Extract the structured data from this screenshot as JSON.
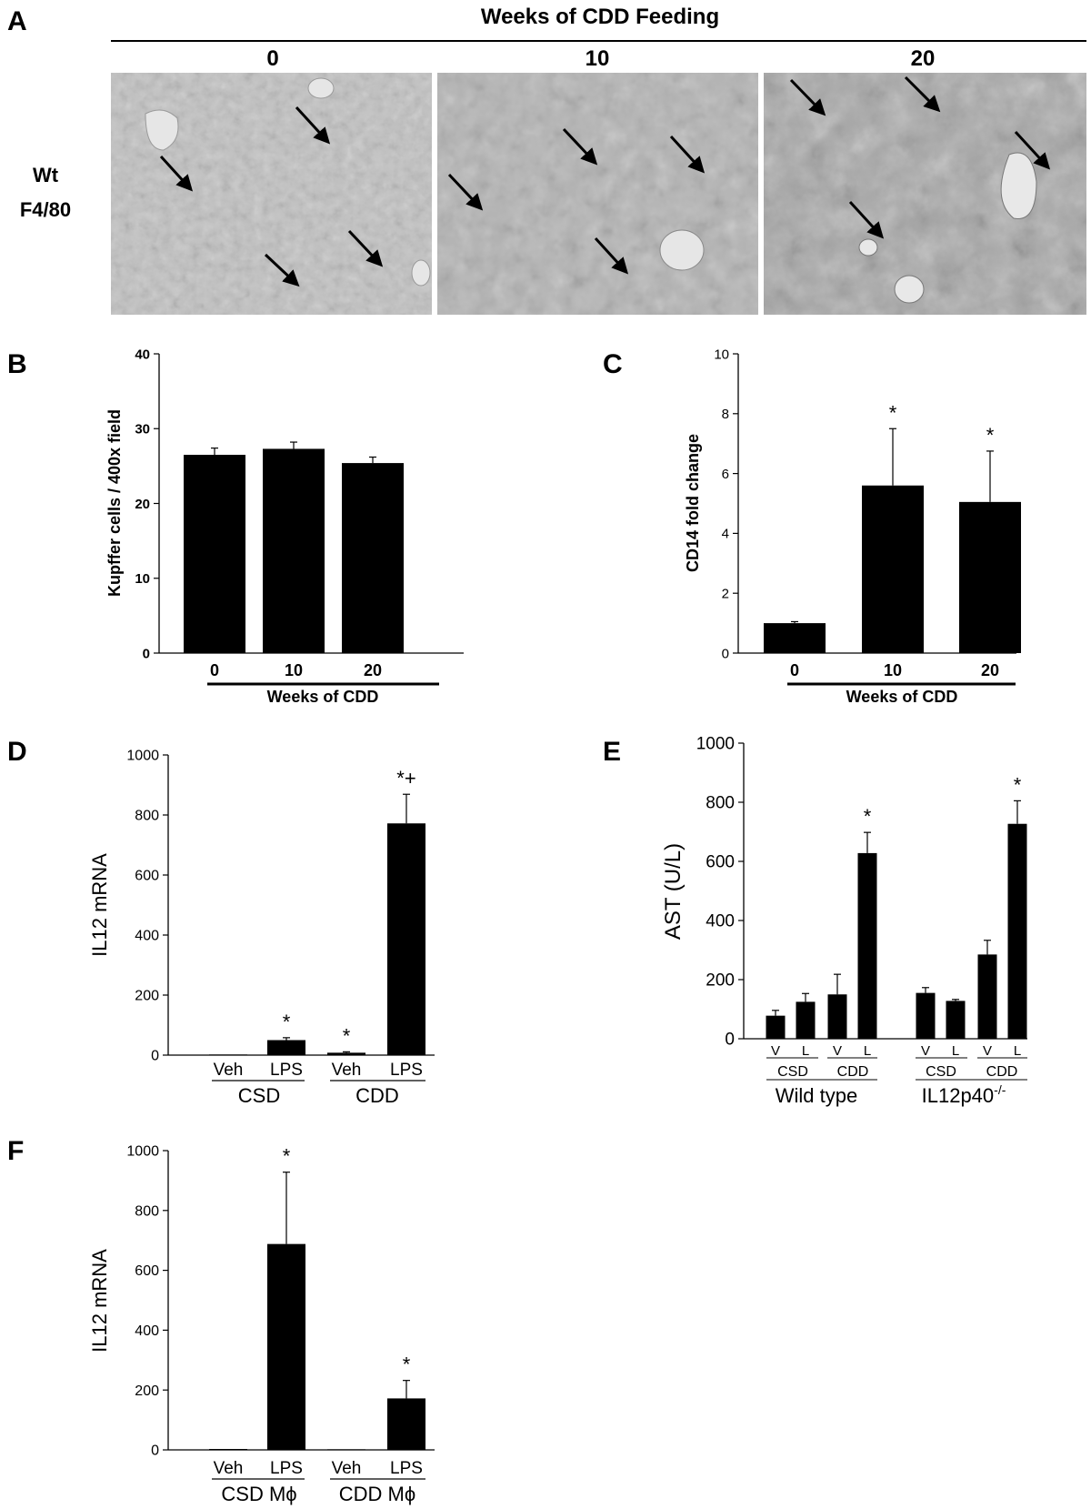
{
  "panel_a": {
    "letter": "A",
    "header": "Weeks of CDD Feeding",
    "row_label": [
      "Wt",
      "F4/80"
    ],
    "columns": [
      "0",
      "10",
      "20"
    ]
  },
  "chart_data": [
    {
      "id": "B",
      "type": "bar",
      "letter": "B",
      "categories": [
        "0",
        "10",
        "20"
      ],
      "values": [
        26.5,
        27.3,
        25.4
      ],
      "errors": [
        0.9,
        0.9,
        0.8
      ],
      "significance": [
        "",
        "",
        ""
      ],
      "xlabel": "Weeks of CDD",
      "ylabel": "Kupffer cells / 400x field",
      "ylim": [
        0,
        40
      ],
      "yticks": [
        "0",
        "10",
        "20",
        "30",
        "40"
      ]
    },
    {
      "id": "C",
      "type": "bar",
      "letter": "C",
      "categories": [
        "0",
        "10",
        "20"
      ],
      "values": [
        1.0,
        5.6,
        5.05
      ],
      "errors": [
        0.05,
        1.9,
        1.7
      ],
      "significance": [
        "",
        "*",
        "*"
      ],
      "xlabel": "Weeks of CDD",
      "ylabel": "CD14 fold change",
      "ylim": [
        0,
        10
      ],
      "yticks": [
        "0",
        "2",
        "4",
        "6",
        "8",
        "10"
      ]
    },
    {
      "id": "D",
      "type": "bar",
      "letter": "D",
      "categories": [
        "Veh",
        "LPS",
        "Veh",
        "LPS"
      ],
      "groups": [
        "CSD",
        "CDD"
      ],
      "values": [
        2,
        50,
        8,
        772
      ],
      "errors": [
        0,
        8,
        3,
        97
      ],
      "significance": [
        "",
        "*",
        "*",
        "*+"
      ],
      "ylabel": "IL12 mRNA",
      "ylim": [
        0,
        1000
      ],
      "yticks": [
        "0",
        "200",
        "400",
        "600",
        "800",
        "1000"
      ]
    },
    {
      "id": "E",
      "type": "bar",
      "letter": "E",
      "categories": [
        "V",
        "L",
        "V",
        "L",
        "V",
        "L",
        "V",
        "L"
      ],
      "diet_groups": [
        "CSD",
        "CDD",
        "CSD",
        "CDD"
      ],
      "genotype_groups": [
        "Wild type",
        "IL12p40"
      ],
      "genotype_superscript": "-/-",
      "values": [
        78,
        125,
        150,
        628,
        155,
        128,
        285,
        727
      ],
      "errors": [
        18,
        28,
        68,
        70,
        18,
        5,
        48,
        78
      ],
      "significance": [
        "",
        "",
        "",
        "*",
        "",
        "",
        "",
        "*"
      ],
      "ylabel": "AST (U/L)",
      "ylim": [
        0,
        1000
      ],
      "yticks": [
        "0",
        "200",
        "400",
        "600",
        "800",
        "1000"
      ]
    },
    {
      "id": "F",
      "type": "bar",
      "letter": "F",
      "categories": [
        "Veh",
        "LPS",
        "Veh",
        "LPS"
      ],
      "groups": [
        "CSD Mϕ",
        "CDD Mϕ"
      ],
      "values": [
        3,
        688,
        2,
        172
      ],
      "errors": [
        0,
        240,
        0,
        60
      ],
      "significance": [
        "",
        "*",
        "",
        "*"
      ],
      "ylabel": "IL12 mRNA",
      "ylim": [
        0,
        1000
      ],
      "yticks": [
        "0",
        "200",
        "400",
        "600",
        "800",
        "1000"
      ]
    }
  ]
}
